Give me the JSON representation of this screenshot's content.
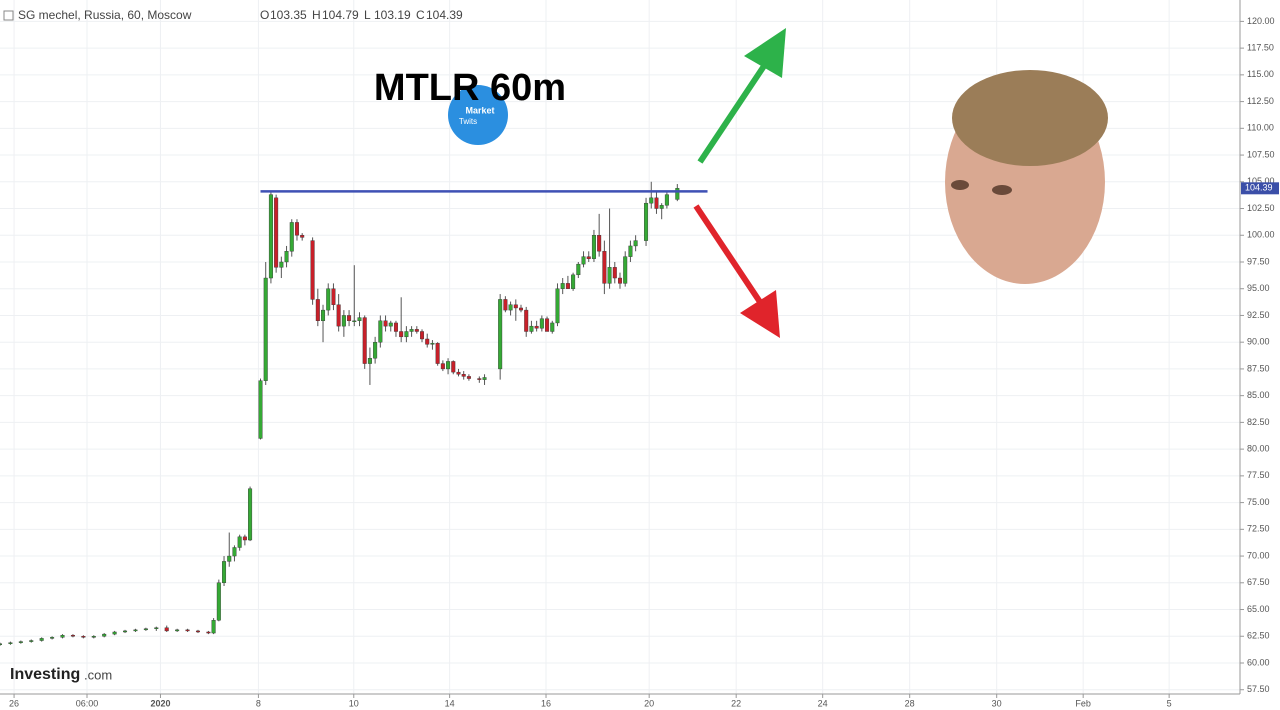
{
  "chart_data": {
    "type": "candlestick",
    "symbol": "SG mechel, Russia, 60, Moscow",
    "ohlc_legend": [
      {
        "name": "O",
        "value": 103.35
      },
      {
        "name": "H",
        "value": 104.79
      },
      {
        "name": "L",
        "value": 103.19
      },
      {
        "name": "C",
        "value": 104.39
      }
    ],
    "last_price": 104.39,
    "title": "MTLR 60m",
    "logo_text": [
      "Market",
      "Twits"
    ],
    "watermark": [
      "Investing",
      ".com"
    ],
    "up_color": "#35a935",
    "down_color": "#c8202a",
    "grid": true,
    "xlim": [
      0,
      238
    ],
    "ylim": [
      57.1,
      122
    ],
    "xticks": [
      {
        "value": 2.7,
        "label": "26"
      },
      {
        "value": 16.7,
        "label": "06:00"
      },
      {
        "value": 30.8,
        "label": "2020"
      },
      {
        "value": 49.6,
        "label": "8"
      },
      {
        "value": 67.9,
        "label": "10"
      },
      {
        "value": 86.3,
        "label": "14"
      },
      {
        "value": 104.8,
        "label": "16"
      },
      {
        "value": 124.6,
        "label": "20"
      },
      {
        "value": 141.3,
        "label": "22"
      },
      {
        "value": 157.9,
        "label": "24"
      },
      {
        "value": 174.6,
        "label": "28"
      },
      {
        "value": 191.3,
        "label": "30"
      },
      {
        "value": 207.9,
        "label": "Feb"
      },
      {
        "value": 224.4,
        "label": "5"
      }
    ],
    "yticks": [
      {
        "value": 57.5,
        "label": "57.50"
      },
      {
        "value": 60,
        "label": "60.00"
      },
      {
        "value": 62.5,
        "label": "62.50"
      },
      {
        "value": 65,
        "label": "65.00"
      },
      {
        "value": 67.5,
        "label": "67.50"
      },
      {
        "value": 70,
        "label": "70.00"
      },
      {
        "value": 72.5,
        "label": "72.50"
      },
      {
        "value": 75,
        "label": "75.00"
      },
      {
        "value": 77.5,
        "label": "77.50"
      },
      {
        "value": 80,
        "label": "80.00"
      },
      {
        "value": 82.5,
        "label": "82.50"
      },
      {
        "value": 85,
        "label": "85.00"
      },
      {
        "value": 87.5,
        "label": "87.50"
      },
      {
        "value": 90,
        "label": "90.00"
      },
      {
        "value": 92.5,
        "label": "92.50"
      },
      {
        "value": 95,
        "label": "95.00"
      },
      {
        "value": 97.5,
        "label": "97.50"
      },
      {
        "value": 100,
        "label": "100.00"
      },
      {
        "value": 102.5,
        "label": "102.50"
      },
      {
        "value": 105,
        "label": "105.00"
      },
      {
        "value": 107.5,
        "label": "107.50"
      },
      {
        "value": 110,
        "label": "110.00"
      },
      {
        "value": 112.5,
        "label": "112.50"
      },
      {
        "value": 115,
        "label": "115.00"
      },
      {
        "value": 117.5,
        "label": "117.50"
      },
      {
        "value": 120,
        "label": "120.00"
      }
    ],
    "level_line": {
      "value": 104.1,
      "x": [
        50,
        135.8
      ],
      "color": "#3f51b5"
    },
    "x": [
      0,
      2,
      4,
      6,
      8,
      10,
      12,
      14,
      16,
      18,
      20,
      22,
      24,
      26,
      28,
      30,
      32,
      34,
      36,
      38,
      40,
      41,
      42,
      43,
      44,
      45,
      46,
      47,
      48,
      50,
      51,
      52,
      53,
      54,
      55,
      56,
      57,
      58,
      60,
      61,
      62,
      63,
      64,
      65,
      66,
      67,
      68,
      69,
      70,
      71,
      72,
      73,
      74,
      75,
      76,
      77,
      78,
      79,
      80,
      81,
      82,
      83,
      84,
      85,
      86,
      87,
      88,
      89,
      90,
      92,
      93,
      96,
      97,
      98,
      99,
      100,
      101,
      102,
      103,
      104,
      105,
      106,
      107,
      108,
      109,
      110,
      111,
      112,
      113,
      114,
      115,
      116,
      117,
      118,
      119,
      120,
      121,
      122,
      124,
      125,
      126,
      127,
      128,
      130
    ],
    "open": [
      61.7,
      61.8,
      61.9,
      62.0,
      62.1,
      62.3,
      62.4,
      62.6,
      62.5,
      62.4,
      62.5,
      62.7,
      62.9,
      63.0,
      63.1,
      63.2,
      63.3,
      63.0,
      63.1,
      63.0,
      62.9,
      62.8,
      64.0,
      67.5,
      69.5,
      70.0,
      70.8,
      71.8,
      71.5,
      81.0,
      86.4,
      96.0,
      103.5,
      97.0,
      97.5,
      98.5,
      101.2,
      100.0,
      99.5,
      94.0,
      92.0,
      93.0,
      95.0,
      93.5,
      91.5,
      92.5,
      92.0,
      92.0,
      92.3,
      88.0,
      88.5,
      90.0,
      92.0,
      91.5,
      91.8,
      91.0,
      90.5,
      91.0,
      91.2,
      91.0,
      90.3,
      89.8,
      89.9,
      88.0,
      87.5,
      88.2,
      87.2,
      87.0,
      86.8,
      86.6,
      86.5,
      87.5,
      94.0,
      93.0,
      93.5,
      93.2,
      93.0,
      91.0,
      91.5,
      91.3,
      92.2,
      91.0,
      91.8,
      95.0,
      95.5,
      95.0,
      96.3,
      97.3,
      98.0,
      97.8,
      100.0,
      98.5,
      95.5,
      97.0,
      96.0,
      95.5,
      98.0,
      99.0,
      99.5,
      103.0,
      103.5,
      102.5,
      102.8,
      103.35
    ],
    "high": [
      61.9,
      62.0,
      62.1,
      62.2,
      62.4,
      62.5,
      62.7,
      62.7,
      62.6,
      62.6,
      62.8,
      63.0,
      63.1,
      63.2,
      63.3,
      63.4,
      63.5,
      63.2,
      63.2,
      63.1,
      63.0,
      64.2,
      67.8,
      70.0,
      72.2,
      71.0,
      72.0,
      72.0,
      76.5,
      86.6,
      97.5,
      104.0,
      103.8,
      98.0,
      99.0,
      101.5,
      101.5,
      100.2,
      99.8,
      95.0,
      93.5,
      95.5,
      95.5,
      94.5,
      93.0,
      93.0,
      97.2,
      92.8,
      92.5,
      89.5,
      90.5,
      92.5,
      92.5,
      92.0,
      92.0,
      94.2,
      91.5,
      91.5,
      91.5,
      91.2,
      90.8,
      90.2,
      90.0,
      88.3,
      88.5,
      88.3,
      87.5,
      87.3,
      87.0,
      86.8,
      87.0,
      94.5,
      94.3,
      93.8,
      94.0,
      93.5,
      93.3,
      92.0,
      92.0,
      92.5,
      92.4,
      92.0,
      95.5,
      96.0,
      96.2,
      96.5,
      97.5,
      98.5,
      98.5,
      100.5,
      102.0,
      99.5,
      102.5,
      97.5,
      96.5,
      98.5,
      99.5,
      100.0,
      103.5,
      105.0,
      104.0,
      103.0,
      104.0,
      104.79
    ],
    "low": [
      61.6,
      61.7,
      61.8,
      61.9,
      62.0,
      62.2,
      62.3,
      62.4,
      62.3,
      62.3,
      62.4,
      62.6,
      62.8,
      62.9,
      63.0,
      63.0,
      62.9,
      62.9,
      62.9,
      62.8,
      62.7,
      62.7,
      63.9,
      67.2,
      69.0,
      69.5,
      70.5,
      71.0,
      71.4,
      80.9,
      86.0,
      95.5,
      96.5,
      96.0,
      97.0,
      98.0,
      99.5,
      99.5,
      93.5,
      91.5,
      90.0,
      92.5,
      93.0,
      91.0,
      90.5,
      91.5,
      91.5,
      91.5,
      87.5,
      86.0,
      88.0,
      89.5,
      91.0,
      91.0,
      90.5,
      90.0,
      90.0,
      90.5,
      90.8,
      90.0,
      89.5,
      89.3,
      87.8,
      87.3,
      87.0,
      87.0,
      86.8,
      86.5,
      86.4,
      86.2,
      86.0,
      86.5,
      92.8,
      92.5,
      92.0,
      92.8,
      90.5,
      90.8,
      91.0,
      91.0,
      91.0,
      90.8,
      91.5,
      94.5,
      95.0,
      94.8,
      96.0,
      97.0,
      97.5,
      97.5,
      98.0,
      94.5,
      95.0,
      95.5,
      95.0,
      95.2,
      97.5,
      98.5,
      99.0,
      102.5,
      102.0,
      101.5,
      102.5,
      103.19
    ],
    "close": [
      61.8,
      61.9,
      62.0,
      62.1,
      62.3,
      62.4,
      62.6,
      62.5,
      62.4,
      62.5,
      62.7,
      62.9,
      63.0,
      63.1,
      63.2,
      63.3,
      63.0,
      63.1,
      63.0,
      62.9,
      62.8,
      64.0,
      67.5,
      69.5,
      70.0,
      70.8,
      71.8,
      71.5,
      76.3,
      86.4,
      96.0,
      103.8,
      97.0,
      97.5,
      98.5,
      101.2,
      100.0,
      99.8,
      94.0,
      92.0,
      93.0,
      95.0,
      93.5,
      91.5,
      92.5,
      92.0,
      92.0,
      92.3,
      88.0,
      88.5,
      90.0,
      92.0,
      91.5,
      91.8,
      91.0,
      90.5,
      91.0,
      91.2,
      91.0,
      90.3,
      89.8,
      89.9,
      88.0,
      87.5,
      88.2,
      87.2,
      87.0,
      86.8,
      86.6,
      86.5,
      86.7,
      94.0,
      93.0,
      93.5,
      93.2,
      93.0,
      91.0,
      91.5,
      91.3,
      92.2,
      91.0,
      91.8,
      95.0,
      95.5,
      95.0,
      96.3,
      97.3,
      98.0,
      97.8,
      100.0,
      98.5,
      95.5,
      97.0,
      96.0,
      95.5,
      98.0,
      99.0,
      99.5,
      103.0,
      103.5,
      102.5,
      102.8,
      103.8,
      104.39
    ]
  }
}
